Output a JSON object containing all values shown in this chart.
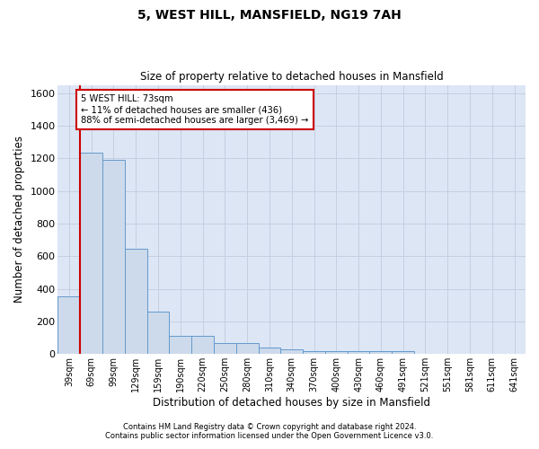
{
  "title": "5, WEST HILL, MANSFIELD, NG19 7AH",
  "subtitle": "Size of property relative to detached houses in Mansfield",
  "xlabel": "Distribution of detached houses by size in Mansfield",
  "ylabel": "Number of detached properties",
  "categories": [
    "39sqm",
    "69sqm",
    "99sqm",
    "129sqm",
    "159sqm",
    "190sqm",
    "220sqm",
    "250sqm",
    "280sqm",
    "310sqm",
    "340sqm",
    "370sqm",
    "400sqm",
    "430sqm",
    "460sqm",
    "491sqm",
    "521sqm",
    "551sqm",
    "581sqm",
    "611sqm",
    "641sqm"
  ],
  "values": [
    355,
    1235,
    1190,
    645,
    260,
    113,
    113,
    65,
    65,
    38,
    30,
    20,
    20,
    18,
    18,
    18,
    0,
    0,
    0,
    0,
    0
  ],
  "bar_color": "#ccdaeb",
  "bar_edge_color": "#6699cc",
  "ylim": [
    0,
    1650
  ],
  "yticks": [
    0,
    200,
    400,
    600,
    800,
    1000,
    1200,
    1400,
    1600
  ],
  "annotation_line1": "5 WEST HILL: 73sqm",
  "annotation_line2": "← 11% of detached houses are smaller (436)",
  "annotation_line3": "88% of semi-detached houses are larger (3,469) →",
  "annotation_box_color": "#cc0000",
  "vline_color": "#cc0000",
  "grid_color": "#c5cfe0",
  "bg_color": "#dce6f5",
  "footer1": "Contains HM Land Registry data © Crown copyright and database right 2024.",
  "footer2": "Contains public sector information licensed under the Open Government Licence v3.0."
}
